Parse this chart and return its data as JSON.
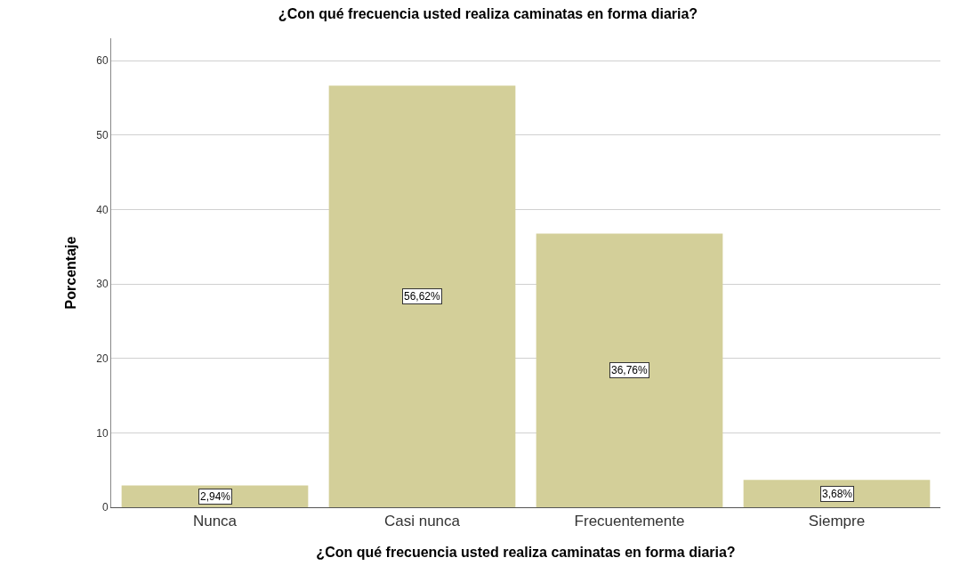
{
  "chart_data": {
    "type": "bar",
    "title": "¿Con qué frecuencia usted realiza caminatas en forma diaria?",
    "xlabel": "¿Con qué frecuencia usted realiza caminatas en forma diaria?",
    "ylabel": "Porcentaje",
    "categories": [
      "Nunca",
      "Casi nunca",
      "Frecuentemente",
      "Siempre"
    ],
    "values": [
      2.94,
      56.62,
      36.76,
      3.68
    ],
    "value_labels": [
      "2,94%",
      "56,62%",
      "36,76%",
      "3,68%"
    ],
    "color": "#d3cf99",
    "ylim": [
      0,
      63
    ],
    "yticks": [
      0,
      10,
      20,
      30,
      40,
      50,
      60
    ],
    "grid": "y"
  }
}
